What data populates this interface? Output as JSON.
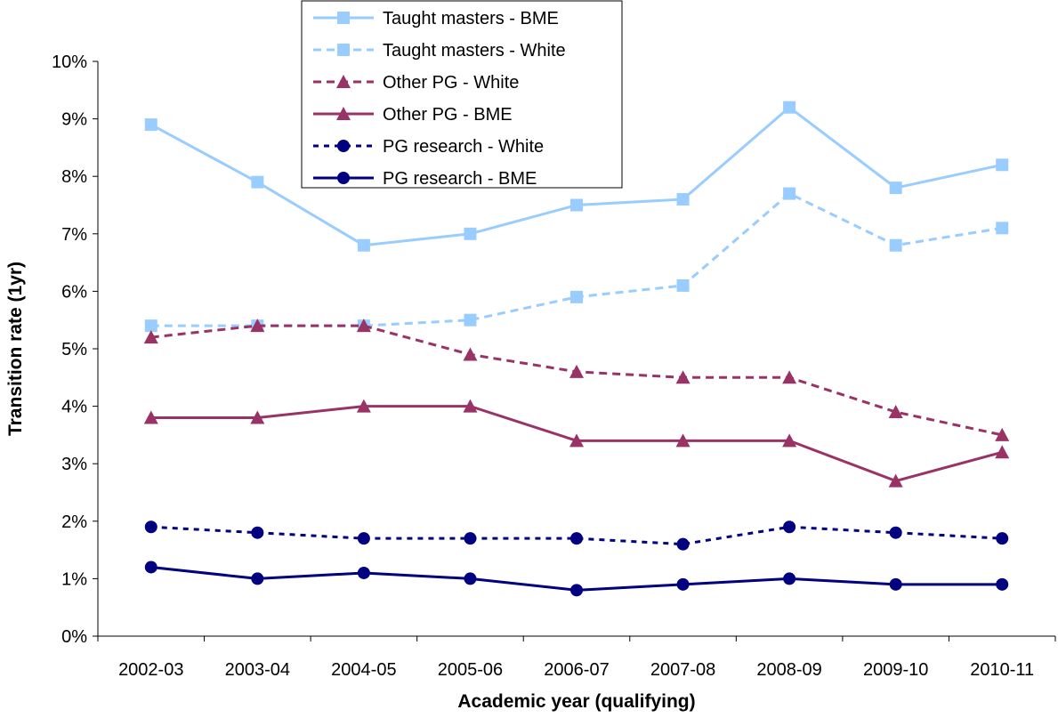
{
  "chart_data": {
    "type": "line",
    "title": "",
    "xlabel": "Academic year (qualifying)",
    "ylabel": "Transition rate (1yr)",
    "categories": [
      "2002-03",
      "2003-04",
      "2004-05",
      "2005-06",
      "2006-07",
      "2007-08",
      "2008-09",
      "2009-10",
      "2010-11"
    ],
    "ylim": [
      0,
      10
    ],
    "y_ticks": [
      "0%",
      "1%",
      "2%",
      "3%",
      "4%",
      "5%",
      "6%",
      "7%",
      "8%",
      "9%",
      "10%"
    ],
    "grid": false,
    "legend_position": "top-center",
    "series": [
      {
        "name": "Taught masters - BME",
        "values": [
          8.9,
          7.9,
          6.8,
          7.0,
          7.5,
          7.6,
          9.2,
          7.8,
          8.2
        ],
        "color": "#99ccff",
        "dash": "solid",
        "marker": "square"
      },
      {
        "name": "Taught masters - White",
        "values": [
          5.4,
          5.4,
          5.4,
          5.5,
          5.9,
          6.1,
          7.7,
          6.8,
          7.1
        ],
        "color": "#99ccff",
        "dash": "dashed",
        "marker": "square"
      },
      {
        "name": "Other PG - White",
        "values": [
          5.2,
          5.4,
          5.4,
          4.9,
          4.6,
          4.5,
          4.5,
          3.9,
          3.5
        ],
        "color": "#993366",
        "dash": "dashed",
        "marker": "triangle"
      },
      {
        "name": "Other PG - BME",
        "values": [
          3.8,
          3.8,
          4.0,
          4.0,
          3.4,
          3.4,
          3.4,
          2.7,
          3.2
        ],
        "color": "#993366",
        "dash": "solid",
        "marker": "triangle"
      },
      {
        "name": "PG research - White",
        "values": [
          1.9,
          1.8,
          1.7,
          1.7,
          1.7,
          1.6,
          1.9,
          1.8,
          1.7
        ],
        "color": "#000080",
        "dash": "dotted",
        "marker": "circle"
      },
      {
        "name": "PG research - BME",
        "values": [
          1.2,
          1.0,
          1.1,
          1.0,
          0.8,
          0.9,
          1.0,
          0.9,
          0.9
        ],
        "color": "#000080",
        "dash": "solid",
        "marker": "circle"
      }
    ]
  }
}
